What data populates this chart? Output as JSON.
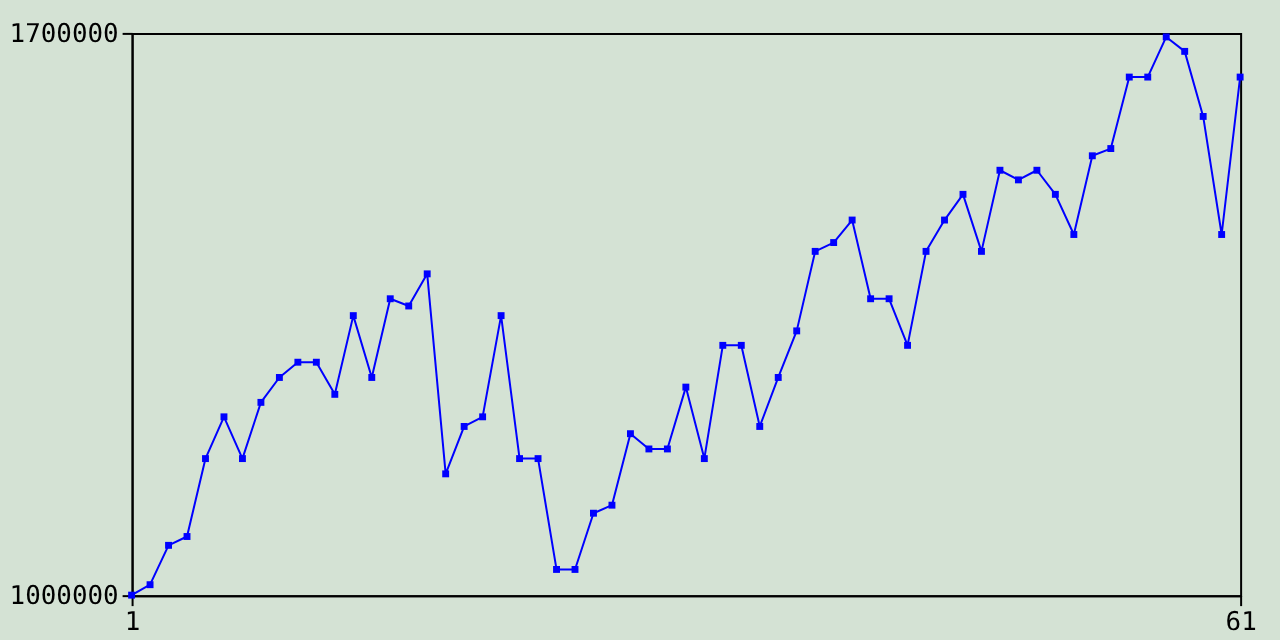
{
  "chart_data": {
    "type": "line",
    "x": [
      1,
      2,
      3,
      4,
      5,
      6,
      7,
      8,
      9,
      10,
      11,
      12,
      13,
      14,
      15,
      16,
      17,
      18,
      19,
      20,
      21,
      22,
      23,
      24,
      25,
      26,
      27,
      28,
      29,
      30,
      31,
      32,
      33,
      34,
      35,
      36,
      37,
      38,
      39,
      40,
      41,
      42,
      43,
      44,
      45,
      46,
      47,
      48,
      49,
      50,
      51,
      52,
      53,
      54,
      55,
      56,
      57,
      58,
      59,
      60,
      61
    ],
    "series": [
      {
        "color": "#0000ff",
        "values": [
          1000000,
          1013000,
          1062000,
          1073000,
          1170000,
          1222000,
          1170000,
          1240000,
          1271000,
          1290000,
          1290000,
          1250000,
          1348000,
          1271000,
          1369000,
          1360000,
          1400000,
          1151000,
          1210000,
          1222000,
          1348000,
          1170000,
          1170000,
          1032000,
          1032000,
          1102000,
          1112000,
          1201000,
          1182000,
          1182000,
          1259000,
          1170000,
          1311000,
          1311000,
          1210000,
          1271000,
          1329000,
          1428000,
          1439000,
          1467000,
          1369000,
          1369000,
          1311000,
          1428000,
          1467000,
          1499000,
          1428000,
          1529000,
          1517000,
          1529000,
          1499000,
          1449000,
          1547000,
          1556000,
          1645000,
          1645000,
          1695000,
          1677000,
          1596000,
          1449000,
          1645000
        ]
      }
    ],
    "xlim": [
      1,
      61
    ],
    "xticks": [
      1,
      61
    ],
    "ylim": [
      1000000,
      1700000
    ],
    "yticks": [
      1000000,
      1700000
    ],
    "grid": false,
    "marker": "square",
    "line_style": "solid"
  }
}
